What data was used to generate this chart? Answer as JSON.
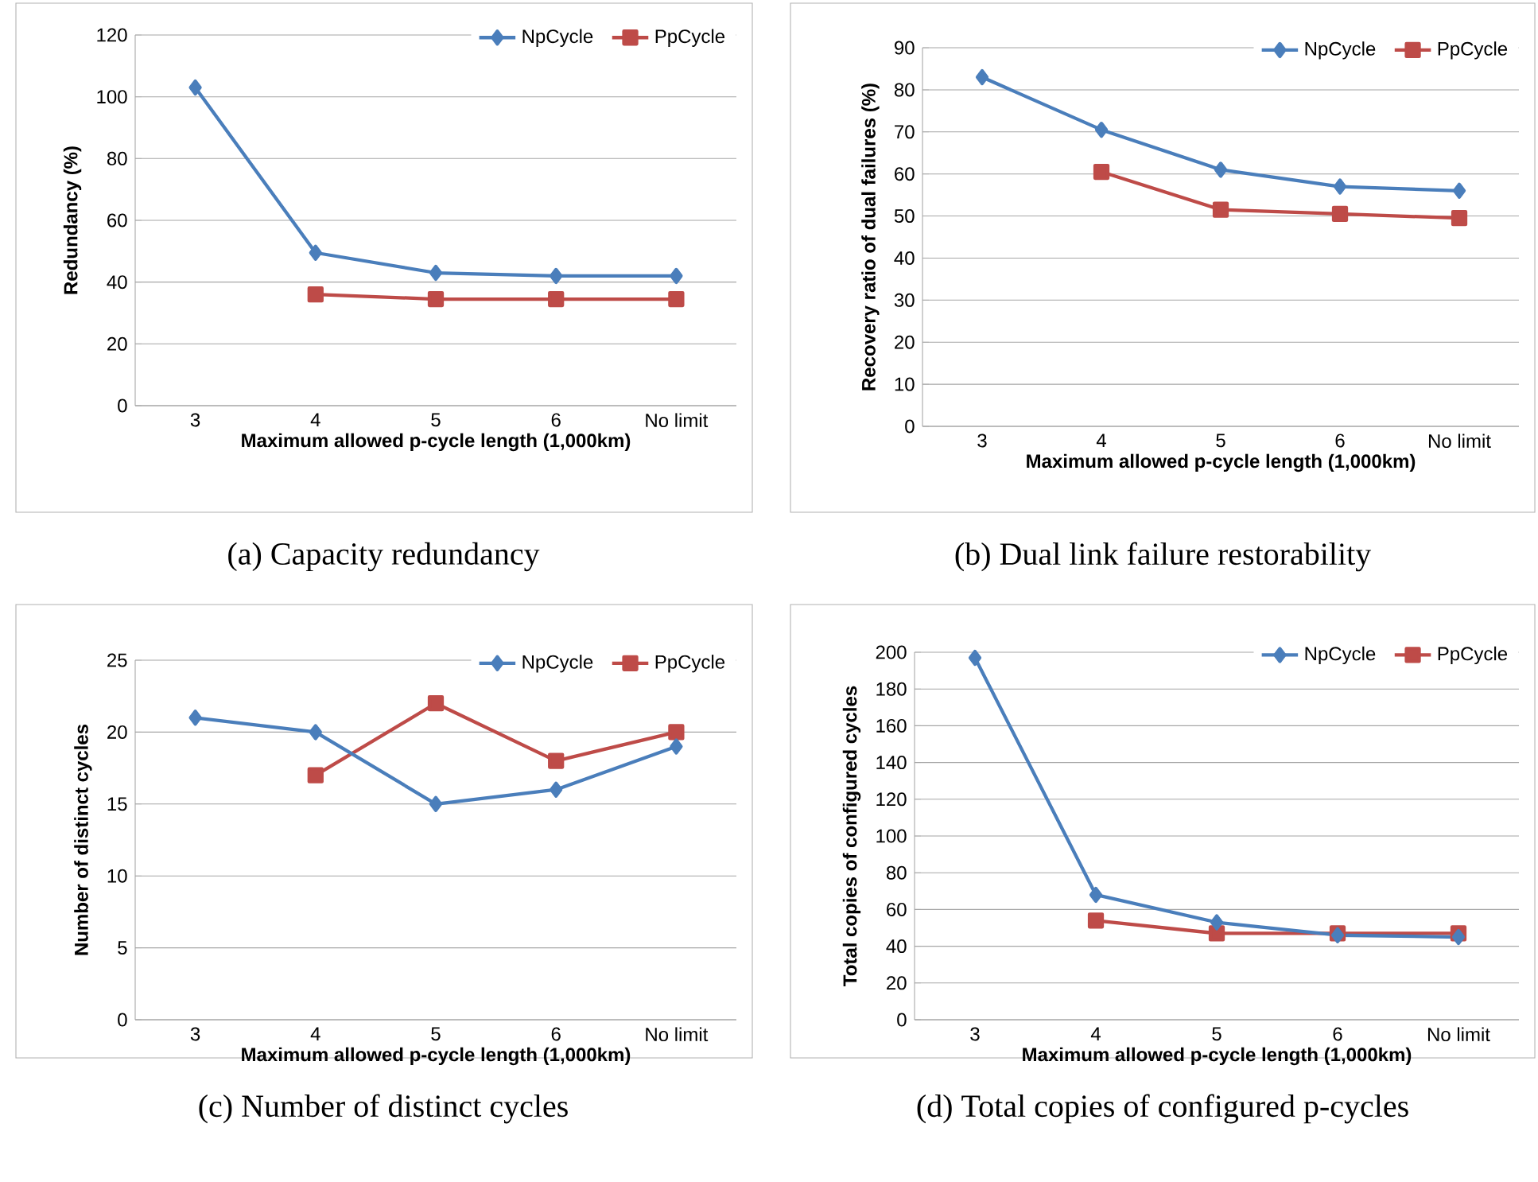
{
  "chart_data": [
    {
      "type": "line",
      "title": "(a) Capacity redundancy",
      "xlabel": "Maximum allowed p-cycle length (1,000km)",
      "ylabel": "Redundancy (%)",
      "categories": [
        "3",
        "4",
        "5",
        "6",
        "No limit"
      ],
      "series": [
        {
          "name": "NpCycle",
          "color": "#4a7ebb",
          "marker": "diamond",
          "values": [
            103,
            49.5,
            43,
            42,
            42
          ]
        },
        {
          "name": "PpCycle",
          "color": "#be4b48",
          "marker": "square",
          "values": [
            null,
            36,
            34.5,
            34.5,
            34.5
          ]
        }
      ],
      "ylim": [
        0,
        120
      ],
      "yticks": [
        0,
        20,
        40,
        60,
        80,
        100,
        120
      ],
      "grid": "y",
      "legend": "top right"
    },
    {
      "type": "line",
      "title": "(b) Dual link failure restorability",
      "xlabel": "Maximum allowed p-cycle length (1,000km)",
      "ylabel": "Recovery  ratio of dual failures (%)",
      "categories": [
        "3",
        "4",
        "5",
        "6",
        "No limit"
      ],
      "series": [
        {
          "name": "NpCycle",
          "color": "#4a7ebb",
          "marker": "diamond",
          "values": [
            83,
            70.5,
            61,
            57,
            56
          ]
        },
        {
          "name": "PpCycle",
          "color": "#be4b48",
          "marker": "square",
          "values": [
            null,
            60.5,
            51.5,
            50.5,
            49.5
          ]
        }
      ],
      "ylim": [
        0,
        90
      ],
      "yticks": [
        0,
        10,
        20,
        30,
        40,
        50,
        60,
        70,
        80,
        90
      ],
      "grid": "y",
      "legend": "top right"
    },
    {
      "type": "line",
      "title": "(c) Number of distinct cycles",
      "xlabel": "Maximum allowed p-cycle length (1,000km)",
      "ylabel": "Number of distinct cycles",
      "categories": [
        "3",
        "4",
        "5",
        "6",
        "No limit"
      ],
      "series": [
        {
          "name": "NpCycle",
          "color": "#4a7ebb",
          "marker": "diamond",
          "values": [
            21,
            20,
            15,
            16,
            19
          ]
        },
        {
          "name": "PpCycle",
          "color": "#be4b48",
          "marker": "square",
          "values": [
            null,
            17,
            22,
            18,
            20
          ]
        }
      ],
      "ylim": [
        0,
        25
      ],
      "yticks": [
        0,
        5,
        10,
        15,
        20,
        25
      ],
      "grid": "y",
      "legend": "top right"
    },
    {
      "type": "line",
      "title": "(d) Total copies of configured p-cycles",
      "xlabel": "Maximum allowed p-cycle length (1,000km)",
      "ylabel": "Total copies of configured cycles",
      "categories": [
        "3",
        "4",
        "5",
        "6",
        "No limit"
      ],
      "series": [
        {
          "name": "NpCycle",
          "color": "#4a7ebb",
          "marker": "diamond",
          "values": [
            197,
            68,
            53,
            46,
            45
          ]
        },
        {
          "name": "PpCycle",
          "color": "#be4b48",
          "marker": "square",
          "values": [
            null,
            54,
            47,
            47,
            47
          ]
        }
      ],
      "ylim": [
        0,
        200
      ],
      "yticks": [
        0,
        20,
        40,
        60,
        80,
        100,
        120,
        140,
        160,
        180,
        200
      ],
      "grid": "y",
      "legend": "top right"
    }
  ]
}
